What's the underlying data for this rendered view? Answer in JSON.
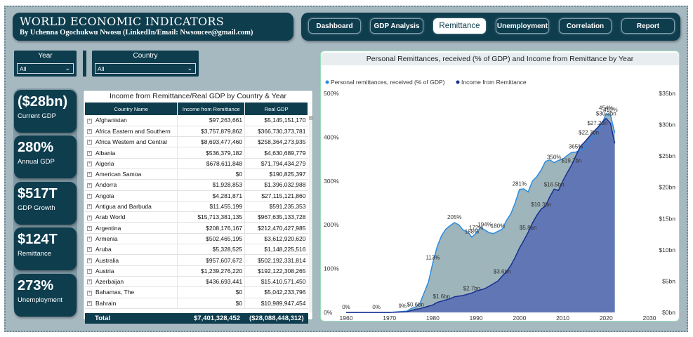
{
  "header": {
    "title": "WORLD ECONOMIC INDICATORS",
    "subtitle": "By Uchenna Ogochukwu Nwosu (LinkedIn/Email: Nwsoucee@gmail.com)"
  },
  "nav": {
    "tabs": [
      {
        "label": "Dashboard"
      },
      {
        "label": "GDP Analysis"
      },
      {
        "label": "Remittance"
      },
      {
        "label": "Unemployment"
      },
      {
        "label": "Correlation"
      },
      {
        "label": "Report"
      }
    ],
    "active": "Remittance"
  },
  "filters": {
    "year": {
      "label": "Year",
      "value": "All"
    },
    "country": {
      "label": "Country",
      "value": "All"
    }
  },
  "kpis": [
    {
      "value": "($28bn)",
      "caption": "Current GDP"
    },
    {
      "value": "280%",
      "caption": "Annual GDP"
    },
    {
      "value": "$517T",
      "caption": "GDP Growth"
    },
    {
      "value": "$124T",
      "caption": "Remittance"
    },
    {
      "value": "273%",
      "caption": "Unemployment"
    }
  ],
  "table": {
    "title": "Income from Remittance/Real GDP by Country & Year",
    "columns": [
      "Country Name",
      "Income from Remittance",
      "Real GDP"
    ],
    "rows": [
      [
        "Afghanistan",
        "$97,263,661",
        "$5,145,151,170"
      ],
      [
        "Africa Eastern and Southern",
        "$3,757,879,862",
        "$366,730,373,781"
      ],
      [
        "Africa Western and Central",
        "$8,693,477,460",
        "$258,364,273,935"
      ],
      [
        "Albania",
        "$536,379,182",
        "$4,630,689,779"
      ],
      [
        "Algeria",
        "$678,611,848",
        "$71,794,434,279"
      ],
      [
        "American Samoa",
        "$0",
        "$190,825,397"
      ],
      [
        "Andorra",
        "$1,928,853",
        "$1,396,032,988"
      ],
      [
        "Angola",
        "$4,281,871",
        "$27,115,121,860"
      ],
      [
        "Antigua and Barbuda",
        "$11,455,199",
        "$591,235,353"
      ],
      [
        "Arab World",
        "$15,713,381,135",
        "$967,635,133,728"
      ],
      [
        "Argentina",
        "$208,176,167",
        "$212,470,427,985"
      ],
      [
        "Armenia",
        "$502,465,195",
        "$3,612,920,620"
      ],
      [
        "Aruba",
        "$5,328,525",
        "$1,148,225,516"
      ],
      [
        "Australia",
        "$957,607,672",
        "$502,192,331,814"
      ],
      [
        "Austria",
        "$1,239,276,220",
        "$192,122,308,265"
      ],
      [
        "Azerbaijan",
        "$436,693,441",
        "$15,410,571,450"
      ],
      [
        "Bahamas, The",
        "$0",
        "$5,042,233,796"
      ],
      [
        "Bahrain",
        "$0",
        "$10,989,947,454"
      ]
    ],
    "total": {
      "label": "Total",
      "remittance": "$7,401,328,452",
      "gdp": "($28,088,448,312)"
    }
  },
  "chart_data": {
    "type": "area",
    "title": "Personal Remittances, received (% of GDP) and Income from Remittance by Year",
    "legend_position": "top-left",
    "x_ticks": [
      "1960",
      "1970",
      "1980",
      "1990",
      "2000",
      "2010",
      "2020",
      "2030"
    ],
    "xlim": [
      1960,
      2030
    ],
    "y_left": {
      "ticks": [
        "0%",
        "100%",
        "200%",
        "300%",
        "400%",
        "500%"
      ],
      "lim": [
        0,
        500
      ]
    },
    "y_right": {
      "ticks": [
        "$0bn",
        "$5bn",
        "$10bn",
        "$15bn",
        "$20bn",
        "$25bn",
        "$30bn",
        "$35bn"
      ],
      "lim": [
        0,
        35
      ]
    },
    "series": [
      {
        "name": "Personal remittances, received (% of GDP)",
        "color": "#2e8be0",
        "fill": "#9db5bb",
        "axis": "left",
        "x": [
          1960,
          1970,
          1974,
          1975,
          1976,
          1977,
          1978,
          1979,
          1980,
          1981,
          1982,
          1983,
          1984,
          1985,
          1986,
          1987,
          1988,
          1989,
          1990,
          1991,
          1992,
          1993,
          1994,
          1995,
          1996,
          1997,
          1998,
          1999,
          2000,
          2001,
          2002,
          2003,
          2004,
          2005,
          2006,
          2007,
          2008,
          2009,
          2010,
          2011,
          2012,
          2013,
          2014,
          2015,
          2016,
          2017,
          2018,
          2019,
          2020,
          2021,
          2022
        ],
        "y": [
          0,
          0,
          3,
          9,
          12,
          20,
          45,
          70,
          113,
          150,
          175,
          190,
          198,
          205,
          200,
          188,
          184,
          172,
          181,
          194,
          188,
          182,
          180,
          185,
          190,
          210,
          225,
          250,
          281,
          282,
          275,
          300,
          310,
          325,
          345,
          348,
          342,
          347,
          350,
          358,
          365,
          366,
          370,
          375,
          390,
          400,
          410,
          430,
          454,
          450,
          410
        ]
      },
      {
        "name": "Income from Remittance",
        "color": "#1a2f8e",
        "fill": "#6176b5",
        "axis": "right",
        "x": [
          1960,
          1970,
          1974,
          1975,
          1976,
          1977,
          1978,
          1979,
          1980,
          1981,
          1982,
          1983,
          1984,
          1985,
          1986,
          1987,
          1988,
          1989,
          1990,
          1991,
          1992,
          1993,
          1994,
          1995,
          1996,
          1997,
          1998,
          1999,
          2000,
          2001,
          2002,
          2003,
          2004,
          2005,
          2006,
          2007,
          2008,
          2009,
          2010,
          2011,
          2012,
          2013,
          2014,
          2015,
          2016,
          2017,
          2018,
          2019,
          2020,
          2021,
          2022
        ],
        "y": [
          0,
          0,
          0.1,
          0.3,
          0.5,
          0.6,
          0.8,
          1.0,
          1.2,
          1.6,
          1.8,
          2.0,
          2.2,
          2.5,
          2.6,
          2.7,
          2.9,
          3.1,
          3.4,
          3.6,
          3.8,
          4.2,
          4.6,
          5.0,
          5.8,
          6.5,
          7.5,
          8.8,
          10.3,
          11.5,
          12.8,
          14.3,
          15.5,
          16.5,
          17.0,
          18.5,
          19.7,
          19.5,
          21.0,
          22.3,
          23.5,
          25.0,
          26.5,
          27.2,
          28.0,
          28.8,
          29.5,
          30.3,
          31.0,
          30.2,
          27.0
        ]
      }
    ],
    "annotations_pct": [
      {
        "x": 1960,
        "label": "0%"
      },
      {
        "x": 1967,
        "label": "0%"
      },
      {
        "x": 1973,
        "label": "9%"
      },
      {
        "x": 1980,
        "label": "113%"
      },
      {
        "x": 1985,
        "label": "205%"
      },
      {
        "x": 1989,
        "label": "188%"
      },
      {
        "x": 1990,
        "label": "172%"
      },
      {
        "x": 1992,
        "label": "194%"
      },
      {
        "x": 1995,
        "label": "180%"
      },
      {
        "x": 2000,
        "label": "281%"
      },
      {
        "x": 2008,
        "label": "350%"
      },
      {
        "x": 2013,
        "label": "365%"
      },
      {
        "x": 2020,
        "label": "454%"
      },
      {
        "x": 2021,
        "label": "410%"
      }
    ],
    "annotations_usd": [
      {
        "x": 1976,
        "label": "$0.6bn"
      },
      {
        "x": 1982,
        "label": "$1.6bn"
      },
      {
        "x": 1989,
        "label": "$2.7bn"
      },
      {
        "x": 1996,
        "label": "$3.6bn"
      },
      {
        "x": 2002,
        "label": "$5.8bn"
      },
      {
        "x": 2005,
        "label": "$10.3bn"
      },
      {
        "x": 2008,
        "label": "$16.5bn"
      },
      {
        "x": 2012,
        "label": "$19.7bn"
      },
      {
        "x": 2016,
        "label": "$22.3bn"
      },
      {
        "x": 2018,
        "label": "$27.2bn"
      },
      {
        "x": 2020,
        "label": "$30.3bn"
      }
    ]
  }
}
